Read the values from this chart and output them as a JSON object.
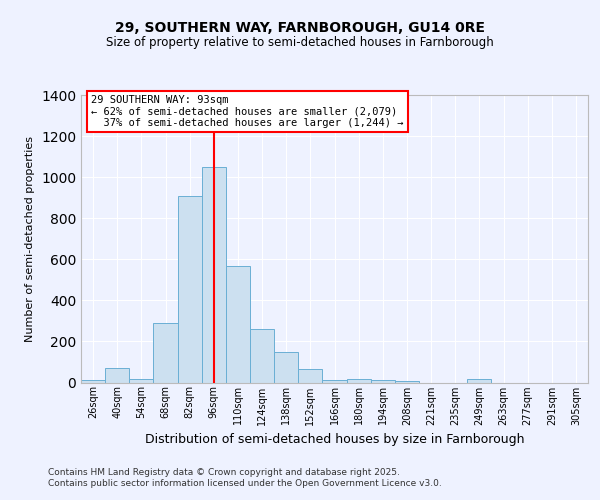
{
  "title1": "29, SOUTHERN WAY, FARNBOROUGH, GU14 0RE",
  "title2": "Size of property relative to semi-detached houses in Farnborough",
  "xlabel": "Distribution of semi-detached houses by size in Farnborough",
  "ylabel": "Number of semi-detached properties",
  "categories": [
    "26sqm",
    "40sqm",
    "54sqm",
    "68sqm",
    "82sqm",
    "96sqm",
    "110sqm",
    "124sqm",
    "138sqm",
    "152sqm",
    "166sqm",
    "180sqm",
    "194sqm",
    "208sqm",
    "221sqm",
    "235sqm",
    "249sqm",
    "263sqm",
    "277sqm",
    "291sqm",
    "305sqm"
  ],
  "values": [
    10,
    70,
    15,
    290,
    910,
    1050,
    565,
    260,
    150,
    65,
    10,
    15,
    10,
    5,
    0,
    0,
    15,
    0,
    0,
    0,
    0
  ],
  "bar_color": "#cce0f0",
  "bar_edge_color": "#6aafd4",
  "vline_index": 5,
  "vline_color": "red",
  "annotation_text": "29 SOUTHERN WAY: 93sqm\n← 62% of semi-detached houses are smaller (2,079)\n  37% of semi-detached houses are larger (1,244) →",
  "annotation_box_color": "white",
  "annotation_box_edge": "red",
  "footer": "Contains HM Land Registry data © Crown copyright and database right 2025.\nContains public sector information licensed under the Open Government Licence v3.0.",
  "ylim": [
    0,
    1400
  ],
  "background_color": "#eef2ff",
  "grid_color": "white"
}
